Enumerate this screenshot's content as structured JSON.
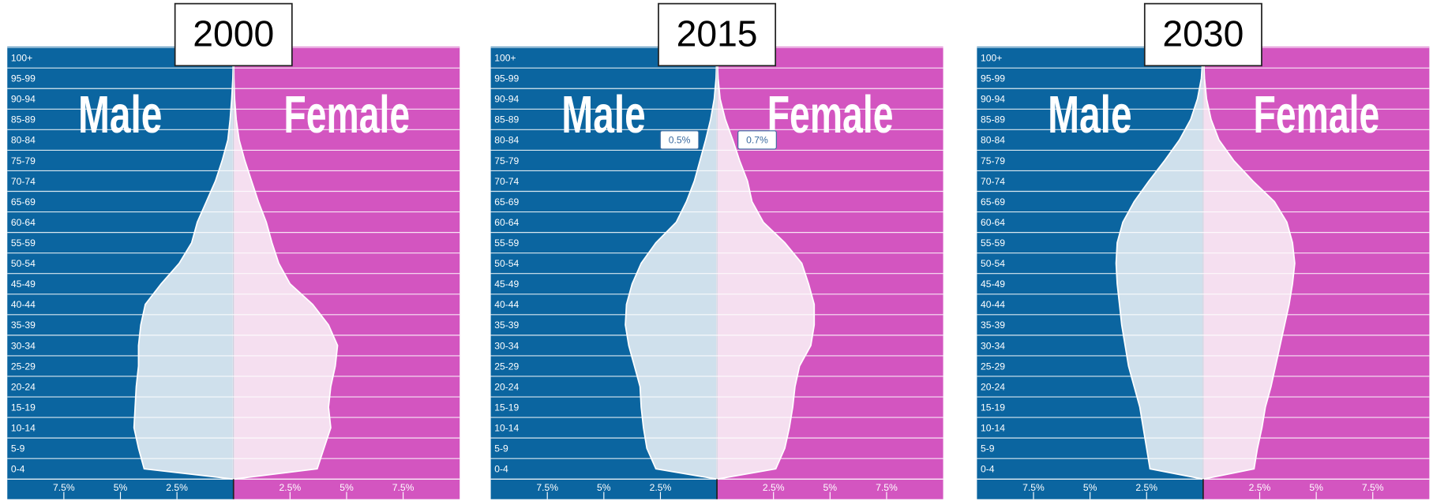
{
  "chart_data": [
    {
      "type": "pyramid",
      "title": "2000",
      "categories": [
        "0-4",
        "5-9",
        "10-14",
        "15-19",
        "20-24",
        "25-29",
        "30-34",
        "35-39",
        "40-44",
        "45-49",
        "50-54",
        "55-59",
        "60-64",
        "65-69",
        "70-74",
        "75-79",
        "80-84",
        "85-89",
        "90-94",
        "95-99",
        "100+"
      ],
      "series": [
        {
          "name": "Male",
          "color": "#0b65a0",
          "fill": "#cfe0ec",
          "values": [
            3.95,
            4.2,
            4.4,
            4.35,
            4.3,
            4.2,
            4.2,
            4.1,
            3.9,
            3.2,
            2.4,
            1.85,
            1.6,
            1.2,
            0.8,
            0.5,
            0.25,
            0.15,
            0.08,
            0.03,
            0.01
          ]
        },
        {
          "name": "Female",
          "color": "#d355c0",
          "fill": "#f5dff0",
          "values": [
            3.7,
            4.0,
            4.3,
            4.2,
            4.3,
            4.5,
            4.6,
            4.2,
            3.5,
            2.5,
            2.0,
            1.7,
            1.45,
            1.1,
            0.8,
            0.5,
            0.25,
            0.12,
            0.05,
            0.02,
            0.01
          ]
        }
      ],
      "xlim": [
        0,
        10
      ],
      "xticks": [
        {
          "value": 2.5,
          "label": "2.5%"
        },
        {
          "value": 5,
          "label": "5%"
        },
        {
          "value": 7.5,
          "label": "7.5%"
        }
      ]
    },
    {
      "type": "pyramid",
      "title": "2015",
      "categories": [
        "0-4",
        "5-9",
        "10-14",
        "15-19",
        "20-24",
        "25-29",
        "30-34",
        "35-39",
        "40-44",
        "45-49",
        "50-54",
        "55-59",
        "60-64",
        "65-69",
        "70-74",
        "75-79",
        "80-84",
        "85-89",
        "90-94",
        "95-99",
        "100+"
      ],
      "series": [
        {
          "name": "Male",
          "color": "#0b65a0",
          "fill": "#cfe0ec",
          "values": [
            2.7,
            3.1,
            3.25,
            3.35,
            3.4,
            3.65,
            3.9,
            4.05,
            4.0,
            3.75,
            3.35,
            2.7,
            1.8,
            1.35,
            1.0,
            0.75,
            0.5,
            0.28,
            0.12,
            0.04,
            0.01
          ]
        },
        {
          "name": "Female",
          "color": "#d355c0",
          "fill": "#f5dff0",
          "values": [
            2.6,
            3.0,
            3.2,
            3.35,
            3.45,
            3.65,
            4.15,
            4.3,
            4.3,
            4.05,
            3.75,
            3.0,
            2.05,
            1.55,
            1.35,
            1.0,
            0.7,
            0.37,
            0.14,
            0.05,
            0.01
          ]
        }
      ],
      "xlim": [
        0,
        10
      ],
      "xticks": [
        {
          "value": 2.5,
          "label": "2.5%"
        },
        {
          "value": 5,
          "label": "5%"
        },
        {
          "value": 7.5,
          "label": "7.5%"
        }
      ],
      "tooltips": [
        "0.5%",
        "0.7%"
      ]
    },
    {
      "type": "pyramid",
      "title": "2030",
      "categories": [
        "0-4",
        "5-9",
        "10-14",
        "15-19",
        "20-24",
        "25-29",
        "30-34",
        "35-39",
        "40-44",
        "45-49",
        "50-54",
        "55-59",
        "60-64",
        "65-69",
        "70-74",
        "75-79",
        "80-84",
        "85-89",
        "90-94",
        "95-99",
        "100+"
      ],
      "series": [
        {
          "name": "Male",
          "color": "#0b65a0",
          "fill": "#cfe0ec",
          "values": [
            2.35,
            2.5,
            2.65,
            2.8,
            3.05,
            3.3,
            3.45,
            3.6,
            3.7,
            3.8,
            3.85,
            3.8,
            3.55,
            3.05,
            2.4,
            1.7,
            1.05,
            0.55,
            0.25,
            0.08,
            0.02
          ]
        },
        {
          "name": "Female",
          "color": "#d355c0",
          "fill": "#f5dff0",
          "values": [
            2.25,
            2.4,
            2.6,
            2.75,
            3.0,
            3.2,
            3.4,
            3.6,
            3.8,
            3.95,
            4.05,
            3.95,
            3.7,
            3.15,
            2.2,
            1.35,
            0.7,
            0.35,
            0.15,
            0.06,
            0.02
          ]
        }
      ],
      "xlim": [
        0,
        10
      ],
      "xticks": [
        {
          "value": 2.5,
          "label": "2.5%"
        },
        {
          "value": 5,
          "label": "5%"
        },
        {
          "value": 7.5,
          "label": "7.5%"
        }
      ]
    }
  ]
}
